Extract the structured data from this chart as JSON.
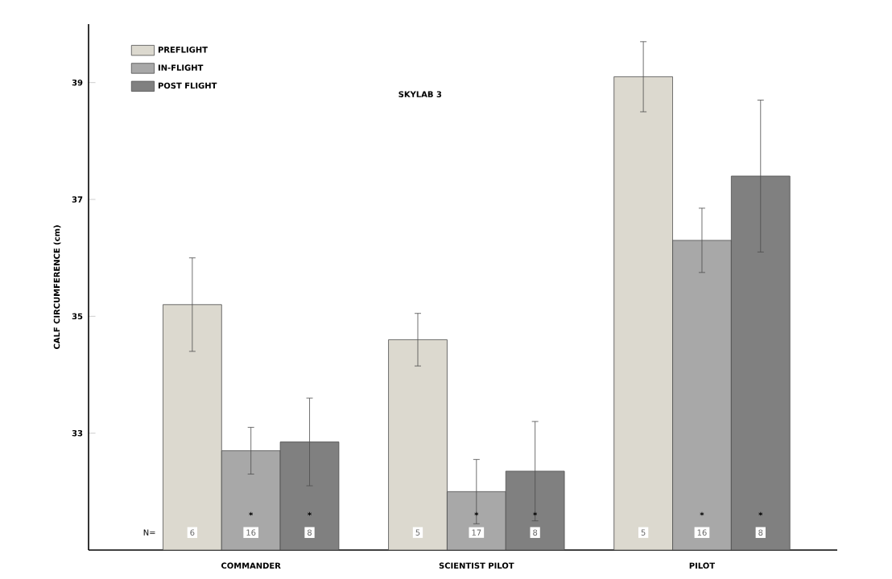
{
  "chart_data": {
    "type": "bar",
    "title": "SKYLAB 3",
    "ylabel": "CALF CIRCUMFERENCE (cm)",
    "categories": [
      "COMMANDER",
      "SCIENTIST PILOT",
      "PILOT"
    ],
    "series": [
      {
        "name": "PREFLIGHT",
        "color": "#dcd9cf",
        "values": [
          35.2,
          34.6,
          39.1
        ],
        "errors": [
          0.8,
          0.45,
          0.6
        ]
      },
      {
        "name": "IN-FLIGHT",
        "color": "#a8a8a8",
        "values": [
          32.7,
          32.0,
          36.3
        ],
        "errors": [
          0.4,
          0.55,
          0.55
        ]
      },
      {
        "name": "POST FLIGHT",
        "color": "#808080",
        "values": [
          32.85,
          32.35,
          37.4
        ],
        "errors": [
          0.75,
          0.85,
          1.3
        ]
      }
    ],
    "ylim": [
      31,
      40
    ],
    "yticks": [
      33,
      35,
      37,
      39
    ],
    "grid": false,
    "legend": "top left",
    "annotations": [
      "N=",
      "6",
      "16",
      "8",
      "5",
      "17",
      "8",
      "5",
      "16",
      "8",
      "*",
      "*",
      "*",
      "*",
      "*",
      "*"
    ]
  }
}
